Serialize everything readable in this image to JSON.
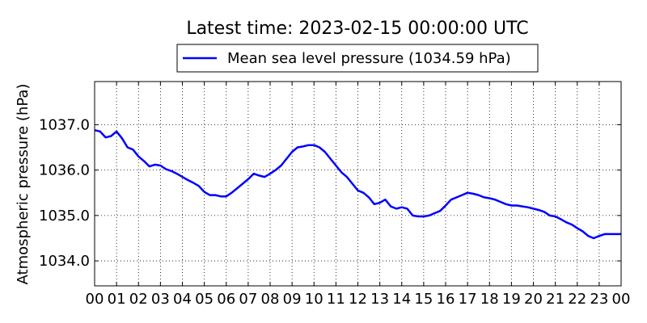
{
  "chart_data": {
    "type": "line",
    "title": "Latest time: 2023-02-15 00:00:00 UTC",
    "xlabel": "",
    "ylabel": "Atmospheric pressure (hPa)",
    "xlim": [
      0,
      24
    ],
    "ylim": [
      1033.45,
      1037.95
    ],
    "grid": true,
    "legend_position": "top-center",
    "x_tick_labels": [
      "00",
      "01",
      "02",
      "03",
      "04",
      "05",
      "06",
      "07",
      "08",
      "09",
      "10",
      "11",
      "12",
      "13",
      "14",
      "15",
      "16",
      "17",
      "18",
      "19",
      "20",
      "21",
      "22",
      "23",
      "00"
    ],
    "y_tick_values": [
      1034.0,
      1035.0,
      1036.0,
      1037.0
    ],
    "y_tick_labels": [
      "1034.0",
      "1035.0",
      "1036.0",
      "1037.0"
    ],
    "series": [
      {
        "name": "Mean sea level pressure (1034.59 hPa)",
        "color": "#0000ff",
        "x": [
          0,
          0.25,
          0.5,
          0.75,
          1.0,
          1.25,
          1.5,
          1.75,
          2.0,
          2.25,
          2.5,
          2.75,
          3.0,
          3.25,
          3.5,
          3.75,
          4.0,
          4.25,
          4.5,
          4.75,
          5.0,
          5.25,
          5.5,
          5.75,
          6.0,
          6.25,
          6.5,
          6.75,
          7.0,
          7.25,
          7.5,
          7.75,
          8.0,
          8.25,
          8.5,
          8.75,
          9.0,
          9.25,
          9.5,
          9.75,
          10.0,
          10.25,
          10.5,
          10.75,
          11.0,
          11.25,
          11.5,
          11.75,
          12.0,
          12.25,
          12.5,
          12.75,
          13.0,
          13.25,
          13.5,
          13.75,
          14.0,
          14.25,
          14.5,
          14.75,
          15.0,
          15.25,
          15.5,
          15.75,
          16.0,
          16.25,
          16.5,
          16.75,
          17.0,
          17.25,
          17.5,
          17.75,
          18.0,
          18.25,
          18.5,
          18.75,
          19.0,
          19.25,
          19.5,
          19.75,
          20.0,
          20.25,
          20.5,
          20.75,
          21.0,
          21.25,
          21.5,
          21.75,
          22.0,
          22.25,
          22.5,
          22.75,
          23.0,
          23.25,
          23.5,
          23.75,
          24.0
        ],
        "values": [
          1036.88,
          1036.85,
          1036.72,
          1036.75,
          1036.85,
          1036.7,
          1036.5,
          1036.45,
          1036.3,
          1036.2,
          1036.08,
          1036.12,
          1036.1,
          1036.02,
          1035.98,
          1035.92,
          1035.85,
          1035.78,
          1035.72,
          1035.65,
          1035.52,
          1035.45,
          1035.45,
          1035.42,
          1035.42,
          1035.5,
          1035.6,
          1035.7,
          1035.8,
          1035.92,
          1035.88,
          1035.85,
          1035.92,
          1036.0,
          1036.1,
          1036.25,
          1036.4,
          1036.5,
          1036.52,
          1036.55,
          1036.55,
          1036.5,
          1036.4,
          1036.25,
          1036.1,
          1035.95,
          1035.85,
          1035.7,
          1035.55,
          1035.5,
          1035.4,
          1035.25,
          1035.28,
          1035.35,
          1035.2,
          1035.15,
          1035.18,
          1035.15,
          1035.0,
          1034.98,
          1034.98,
          1035.0,
          1035.05,
          1035.1,
          1035.22,
          1035.35,
          1035.4,
          1035.45,
          1035.5,
          1035.48,
          1035.45,
          1035.4,
          1035.38,
          1035.35,
          1035.3,
          1035.25,
          1035.22,
          1035.22,
          1035.2,
          1035.18,
          1035.15,
          1035.12,
          1035.08,
          1035.0,
          1034.98,
          1034.92,
          1034.85,
          1034.8,
          1034.72,
          1034.65,
          1034.55,
          1034.5,
          1034.55,
          1034.59,
          1034.59,
          1034.59,
          1034.59
        ]
      }
    ]
  }
}
